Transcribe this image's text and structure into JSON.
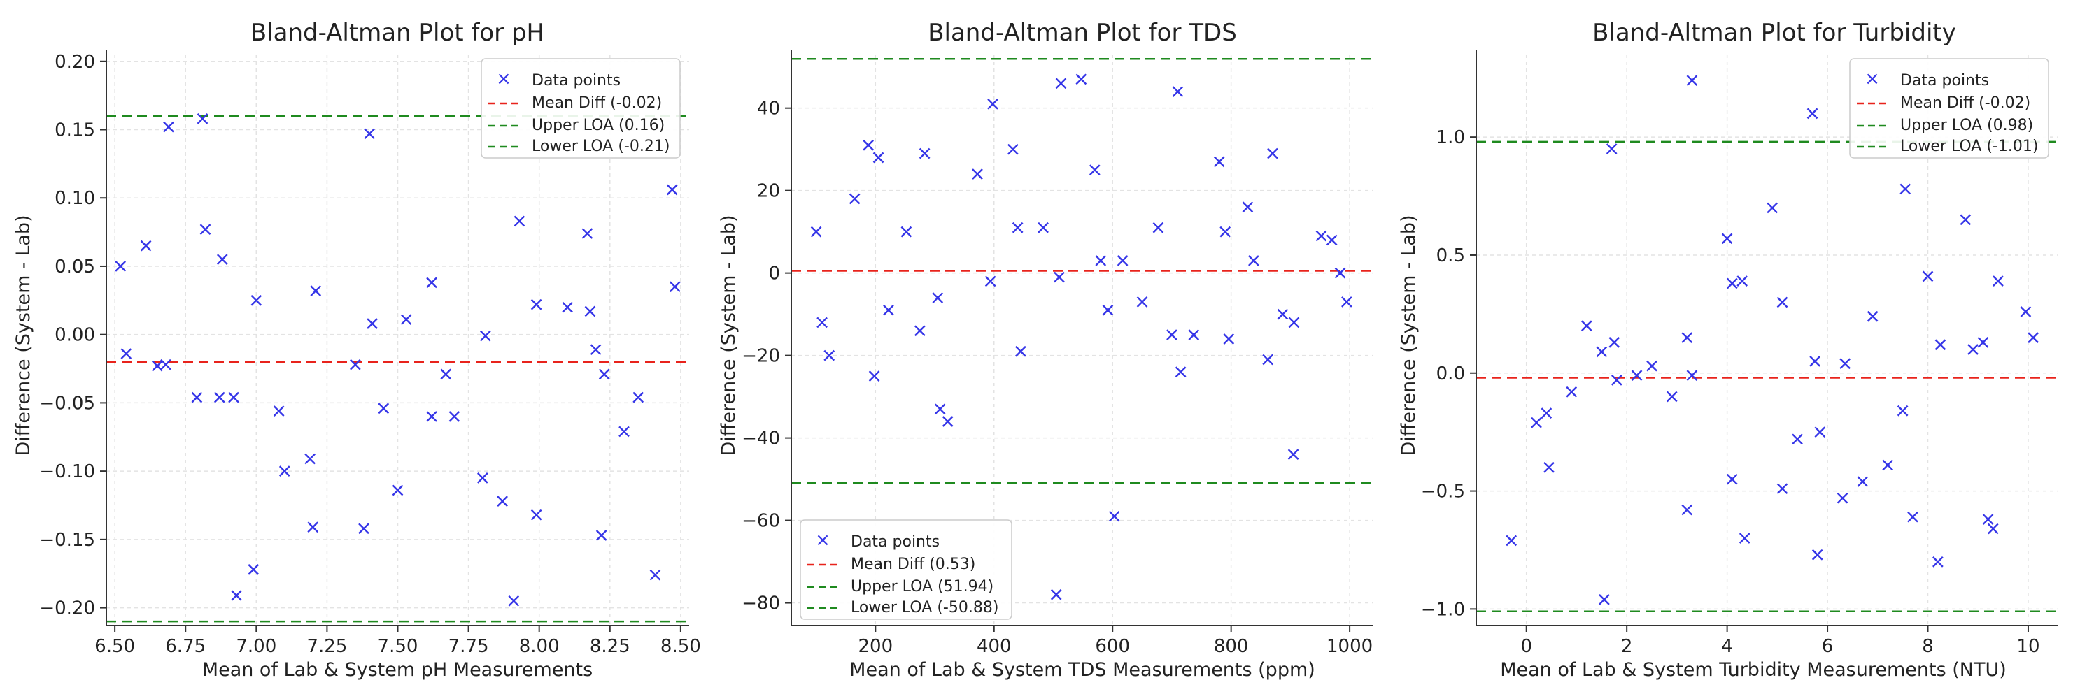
{
  "chart_data": [
    {
      "type": "scatter",
      "title": "Bland-Altman Plot for pH",
      "xlabel": "Mean of Lab & System pH Measurements",
      "ylabel": "Difference (System - Lab)",
      "xlim": [
        6.47,
        8.53
      ],
      "ylim": [
        -0.213,
        0.205
      ],
      "xticks": [
        6.5,
        6.75,
        7.0,
        7.25,
        7.5,
        7.75,
        8.0,
        8.25,
        8.5
      ],
      "xtick_labels": [
        "6.50",
        "6.75",
        "7.00",
        "7.25",
        "7.50",
        "7.75",
        "8.00",
        "8.25",
        "8.50"
      ],
      "yticks": [
        -0.2,
        -0.15,
        -0.1,
        -0.05,
        0.0,
        0.05,
        0.1,
        0.15,
        0.2
      ],
      "ytick_labels": [
        "−0.20",
        "−0.15",
        "−0.10",
        "−0.05",
        "0.00",
        "0.05",
        "0.10",
        "0.15",
        "0.20"
      ],
      "grid": true,
      "legend_position": "top-right",
      "mean_diff": -0.02,
      "upper_loa": 0.16,
      "lower_loa": -0.21,
      "legend": [
        "Data points",
        "Mean Diff (-0.02)",
        "Upper LOA (0.16)",
        "Lower LOA (-0.21)"
      ],
      "points": [
        [
          6.52,
          0.05
        ],
        [
          6.54,
          -0.014
        ],
        [
          6.61,
          0.065
        ],
        [
          6.65,
          -0.023
        ],
        [
          6.68,
          -0.022
        ],
        [
          6.69,
          0.152
        ],
        [
          6.79,
          -0.046
        ],
        [
          6.81,
          0.158
        ],
        [
          6.82,
          0.077
        ],
        [
          6.87,
          -0.046
        ],
        [
          6.88,
          0.055
        ],
        [
          6.92,
          -0.046
        ],
        [
          6.93,
          -0.191
        ],
        [
          6.99,
          -0.172
        ],
        [
          7.0,
          0.025
        ],
        [
          7.08,
          -0.056
        ],
        [
          7.1,
          -0.1
        ],
        [
          7.19,
          -0.091
        ],
        [
          7.2,
          -0.141
        ],
        [
          7.21,
          0.032
        ],
        [
          7.35,
          -0.022
        ],
        [
          7.38,
          -0.142
        ],
        [
          7.4,
          0.147
        ],
        [
          7.41,
          0.008
        ],
        [
          7.45,
          -0.054
        ],
        [
          7.5,
          -0.114
        ],
        [
          7.53,
          0.011
        ],
        [
          7.62,
          0.038
        ],
        [
          7.62,
          -0.06
        ],
        [
          7.67,
          -0.029
        ],
        [
          7.7,
          -0.06
        ],
        [
          7.8,
          -0.105
        ],
        [
          7.81,
          -0.001
        ],
        [
          7.87,
          -0.122
        ],
        [
          7.91,
          -0.195
        ],
        [
          7.93,
          0.083
        ],
        [
          7.99,
          0.022
        ],
        [
          7.99,
          -0.132
        ],
        [
          8.1,
          0.02
        ],
        [
          8.17,
          0.074
        ],
        [
          8.18,
          0.017
        ],
        [
          8.2,
          -0.011
        ],
        [
          8.22,
          -0.147
        ],
        [
          8.23,
          -0.029
        ],
        [
          8.3,
          -0.071
        ],
        [
          8.35,
          -0.046
        ],
        [
          8.41,
          -0.176
        ],
        [
          8.47,
          0.106
        ],
        [
          8.48,
          0.035
        ]
      ]
    },
    {
      "type": "scatter",
      "title": "Bland-Altman Plot for TDS",
      "xlabel": "Mean of Lab & System TDS Measurements (ppm)",
      "ylabel": "Difference (System - Lab)",
      "xlim": [
        58,
        1040
      ],
      "ylim": [
        -85.5,
        53
      ],
      "xticks": [
        200,
        400,
        600,
        800,
        1000
      ],
      "xtick_labels": [
        "200",
        "400",
        "600",
        "800",
        "1000"
      ],
      "yticks": [
        -80,
        -60,
        -40,
        -20,
        0,
        20,
        40
      ],
      "ytick_labels": [
        "−80",
        "−60",
        "−40",
        "−20",
        "0",
        "20",
        "40"
      ],
      "grid": true,
      "legend_position": "bottom-left",
      "mean_diff": 0.53,
      "upper_loa": 51.94,
      "lower_loa": -50.88,
      "legend": [
        "Data points",
        "Mean Diff (0.53)",
        "Upper LOA (51.94)",
        "Lower LOA (-50.88)"
      ],
      "points": [
        [
          100,
          10
        ],
        [
          110,
          -12
        ],
        [
          122,
          -20
        ],
        [
          165,
          18
        ],
        [
          188,
          31
        ],
        [
          198,
          -25
        ],
        [
          205,
          28
        ],
        [
          222,
          -9
        ],
        [
          252,
          10
        ],
        [
          275,
          -14
        ],
        [
          283,
          29
        ],
        [
          305,
          -6
        ],
        [
          309,
          -33
        ],
        [
          322,
          -36
        ],
        [
          372,
          24
        ],
        [
          394,
          -2
        ],
        [
          398,
          41
        ],
        [
          432,
          30
        ],
        [
          440,
          11
        ],
        [
          445,
          -19
        ],
        [
          483,
          11
        ],
        [
          505,
          -78
        ],
        [
          510,
          -1
        ],
        [
          513,
          46
        ],
        [
          547,
          47
        ],
        [
          570,
          25
        ],
        [
          580,
          3
        ],
        [
          592,
          -9
        ],
        [
          603,
          -59
        ],
        [
          617,
          3
        ],
        [
          650,
          -7
        ],
        [
          677,
          11
        ],
        [
          700,
          -15
        ],
        [
          710,
          44
        ],
        [
          715,
          -24
        ],
        [
          737,
          -15
        ],
        [
          780,
          27
        ],
        [
          790,
          10
        ],
        [
          796,
          -16
        ],
        [
          828,
          16
        ],
        [
          838,
          3
        ],
        [
          862,
          -21
        ],
        [
          870,
          29
        ],
        [
          887,
          -10
        ],
        [
          905,
          -44
        ],
        [
          906,
          -12
        ],
        [
          952,
          9
        ],
        [
          970,
          8
        ],
        [
          984,
          0
        ],
        [
          995,
          -7
        ]
      ]
    },
    {
      "type": "scatter",
      "title": "Bland-Altman Plot for Turbidity",
      "xlabel": "Mean of Lab & System Turbidity Measurements (NTU)",
      "ylabel": "Difference (System - Lab)",
      "xlim": [
        -1.0,
        10.6
      ],
      "ylim": [
        -1.07,
        1.35
      ],
      "xticks": [
        0,
        2,
        4,
        6,
        8,
        10
      ],
      "xtick_labels": [
        "0",
        "2",
        "4",
        "6",
        "8",
        "10"
      ],
      "yticks": [
        -1.0,
        -0.5,
        0.0,
        0.5,
        1.0
      ],
      "ytick_labels": [
        "−1.0",
        "−0.5",
        "0.0",
        "0.5",
        "1.0"
      ],
      "grid": true,
      "legend_position": "top-right",
      "mean_diff": -0.02,
      "upper_loa": 0.98,
      "lower_loa": -1.01,
      "legend": [
        "Data points",
        "Mean Diff (-0.02)",
        "Upper LOA (0.98)",
        "Lower LOA (-1.01)"
      ],
      "points": [
        [
          -0.3,
          -0.71
        ],
        [
          0.2,
          -0.21
        ],
        [
          0.4,
          -0.17
        ],
        [
          0.45,
          -0.4
        ],
        [
          0.9,
          -0.08
        ],
        [
          1.2,
          0.2
        ],
        [
          1.5,
          0.09
        ],
        [
          1.55,
          -0.96
        ],
        [
          1.7,
          0.95
        ],
        [
          1.75,
          0.13
        ],
        [
          1.8,
          -0.03
        ],
        [
          2.2,
          -0.01
        ],
        [
          2.5,
          0.03
        ],
        [
          2.9,
          -0.1
        ],
        [
          3.2,
          0.15
        ],
        [
          3.2,
          -0.58
        ],
        [
          3.3,
          -0.01
        ],
        [
          3.3,
          1.24
        ],
        [
          4.0,
          0.57
        ],
        [
          4.1,
          -0.45
        ],
        [
          4.1,
          0.38
        ],
        [
          4.3,
          0.39
        ],
        [
          4.35,
          -0.7
        ],
        [
          4.9,
          0.7
        ],
        [
          5.1,
          -0.49
        ],
        [
          5.1,
          0.3
        ],
        [
          5.4,
          -0.28
        ],
        [
          5.7,
          1.1
        ],
        [
          5.75,
          0.05
        ],
        [
          5.8,
          -0.77
        ],
        [
          5.85,
          -0.25
        ],
        [
          6.3,
          -0.53
        ],
        [
          6.35,
          0.04
        ],
        [
          6.7,
          -0.46
        ],
        [
          6.9,
          0.24
        ],
        [
          7.2,
          -0.39
        ],
        [
          7.5,
          -0.16
        ],
        [
          7.55,
          0.78
        ],
        [
          7.7,
          -0.61
        ],
        [
          8.0,
          0.41
        ],
        [
          8.2,
          -0.8
        ],
        [
          8.25,
          0.12
        ],
        [
          8.75,
          0.65
        ],
        [
          8.9,
          0.1
        ],
        [
          9.1,
          0.13
        ],
        [
          9.2,
          -0.62
        ],
        [
          9.3,
          -0.66
        ],
        [
          9.4,
          0.39
        ],
        [
          9.95,
          0.26
        ],
        [
          10.1,
          0.15
        ]
      ]
    }
  ]
}
